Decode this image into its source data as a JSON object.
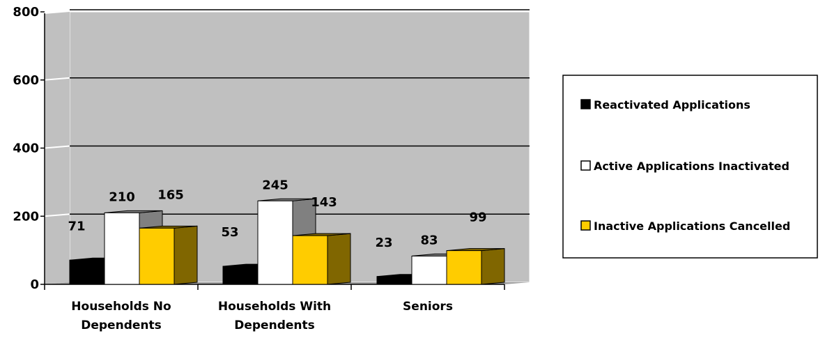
{
  "chart_data": {
    "type": "bar",
    "title": "",
    "xlabel": "",
    "ylabel": "",
    "ylim": [
      0,
      800
    ],
    "yticks": [
      0,
      200,
      400,
      600,
      800
    ],
    "grid": true,
    "three_d": true,
    "legend_position": "right",
    "categories": [
      [
        "Households No",
        "Dependents"
      ],
      [
        "Households With",
        "Dependents"
      ],
      [
        "Seniors"
      ]
    ],
    "series": [
      {
        "name": "Reactivated Applications",
        "values": [
          71,
          53,
          23
        ],
        "color": "#000000",
        "side_color": "#000000"
      },
      {
        "name": "Active Applications Inactivated",
        "values": [
          210,
          245,
          83
        ],
        "color": "#ffffff",
        "side_color": "#808080"
      },
      {
        "name": "Inactive Applications Cancelled",
        "values": [
          165,
          143,
          99
        ],
        "color": "#ffcc00",
        "side_color": "#806600"
      }
    ],
    "colors": {
      "plot_background": "#c0c0c0",
      "gridline": "#000000",
      "wall_edge": "#ffffff"
    }
  }
}
